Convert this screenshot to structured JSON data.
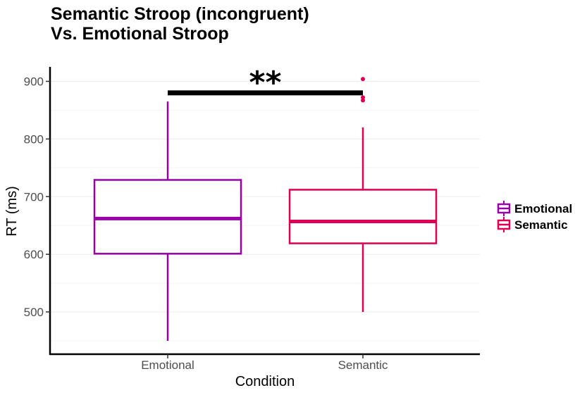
{
  "chart_data": {
    "type": "box",
    "title_line1": "Semantic Stroop (incongruent)",
    "title_line2": "Vs. Emotional Stroop",
    "xlabel": "Condition",
    "ylabel": "RT (ms)",
    "ylim": [
      425,
      925
    ],
    "yticks": [
      500,
      600,
      700,
      800,
      900
    ],
    "ytick_labels": [
      "500",
      "600",
      "700",
      "800",
      "900"
    ],
    "minor_gridlines": [
      450,
      550,
      650,
      750,
      850
    ],
    "categories": [
      "Emotional",
      "Semantic"
    ],
    "series": [
      {
        "name": "Emotional",
        "color": "#9900aa",
        "whisker_low": 450,
        "q1": 601,
        "median": 662,
        "q3": 729,
        "whisker_high": 865,
        "outliers": []
      },
      {
        "name": "Semantic",
        "color": "#dd0055",
        "whisker_low": 500,
        "q1": 619,
        "median": 657,
        "q3": 712,
        "whisker_high": 820,
        "outliers": [
          904,
          872,
          867
        ]
      }
    ],
    "significance": {
      "label": "**",
      "y": 880
    },
    "legend": {
      "position": "right",
      "entries": [
        "Emotional",
        "Semantic"
      ]
    },
    "grid": "horizontal"
  }
}
